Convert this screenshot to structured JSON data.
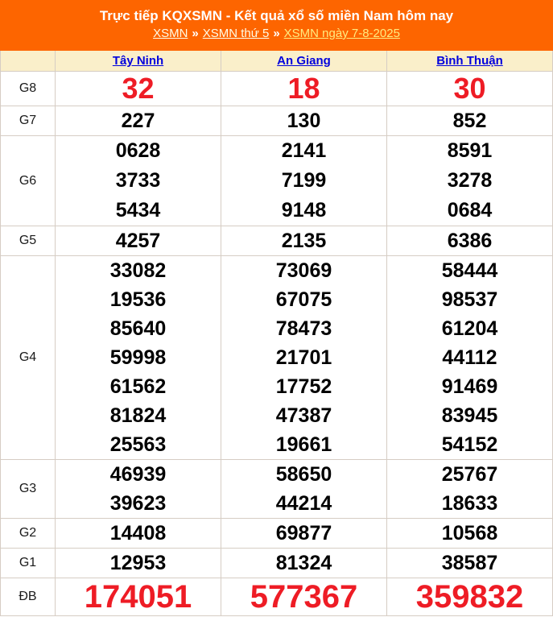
{
  "header": {
    "title": "Trực tiếp KQXSMN - Kết quả xổ số miền Nam hôm nay",
    "separator": "»",
    "breadcrumb": [
      {
        "label": "XSMN"
      },
      {
        "label": "XSMN thứ 5"
      },
      {
        "label": "XSMN ngày 7-8-2025"
      }
    ]
  },
  "colors": {
    "banner_orange": "#FD6500",
    "header_row_bg": "#FAEFCA",
    "column_link_blue": "#0000DD",
    "highlight_red": "#EE1C25",
    "border_gray": "#D6CDC4"
  },
  "table": {
    "columns": [
      "Tây Ninh",
      "An Giang",
      "Bình Thuận"
    ],
    "rows": [
      {
        "label": "G8",
        "values": [
          [
            "32"
          ],
          [
            "18"
          ],
          [
            "30"
          ]
        ]
      },
      {
        "label": "G7",
        "values": [
          [
            "227"
          ],
          [
            "130"
          ],
          [
            "852"
          ]
        ]
      },
      {
        "label": "G6",
        "values": [
          [
            "0628",
            "3733",
            "5434"
          ],
          [
            "2141",
            "7199",
            "9148"
          ],
          [
            "8591",
            "3278",
            "0684"
          ]
        ]
      },
      {
        "label": "G5",
        "values": [
          [
            "4257"
          ],
          [
            "2135"
          ],
          [
            "6386"
          ]
        ]
      },
      {
        "label": "G4",
        "values": [
          [
            "33082",
            "19536",
            "85640",
            "59998",
            "61562",
            "81824",
            "25563"
          ],
          [
            "73069",
            "67075",
            "78473",
            "21701",
            "17752",
            "47387",
            "19661"
          ],
          [
            "58444",
            "98537",
            "61204",
            "44112",
            "91469",
            "83945",
            "54152"
          ]
        ]
      },
      {
        "label": "G3",
        "values": [
          [
            "46939",
            "39623"
          ],
          [
            "58650",
            "44214"
          ],
          [
            "25767",
            "18633"
          ]
        ]
      },
      {
        "label": "G2",
        "values": [
          [
            "14408"
          ],
          [
            "69877"
          ],
          [
            "10568"
          ]
        ]
      },
      {
        "label": "G1",
        "values": [
          [
            "12953"
          ],
          [
            "81324"
          ],
          [
            "38587"
          ]
        ]
      },
      {
        "label": "ĐB",
        "values": [
          [
            "174051"
          ],
          [
            "577367"
          ],
          [
            "359832"
          ]
        ]
      }
    ]
  }
}
